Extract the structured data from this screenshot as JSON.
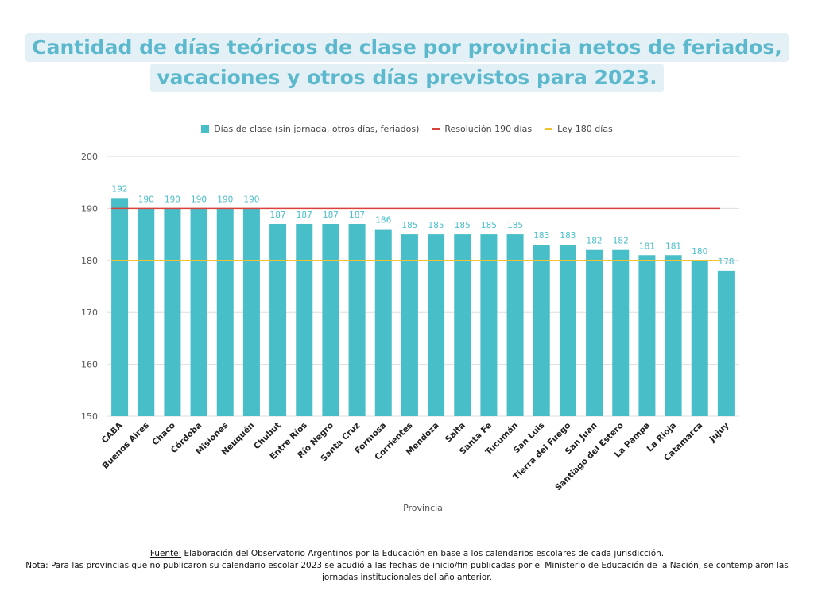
{
  "title_lines": [
    "Cantidad de días teóricos de clase por provincia netos de feriados,",
    "vacaciones y otros días previstos para 2023."
  ],
  "colors": {
    "bar": "#48bec8",
    "label": "#48bec8",
    "line_190": "#d9413a",
    "line_180": "#f2c230",
    "grid": "#dddddd",
    "title_text": "#5cb8cc",
    "title_bg": "#e3f1f6"
  },
  "legend": [
    {
      "label": "Días de clase (sin jornada, otros días, feriados)",
      "kind": "box",
      "color": "#48bec8"
    },
    {
      "label": "Resolución 190 días",
      "kind": "line",
      "color": "#d9413a"
    },
    {
      "label": "Ley 180 días",
      "kind": "line",
      "color": "#f2c230"
    }
  ],
  "chart_data": {
    "type": "bar",
    "title": "Cantidad de días teóricos de clase por provincia netos de feriados, vacaciones y otros días previstos para 2023.",
    "xlabel": "Provincia",
    "ylabel": "",
    "ylim": [
      150,
      200
    ],
    "yticks": [
      150,
      160,
      170,
      180,
      190,
      200
    ],
    "grid": true,
    "legend_position": "top",
    "categories": [
      "CABA",
      "Buenos Aires",
      "Chaco",
      "Córdoba",
      "Misiones",
      "Neuquén",
      "Chubut",
      "Entre Ríos",
      "Río Negro",
      "Santa Cruz",
      "Formosa",
      "Corrientes",
      "Mendoza",
      "Salta",
      "Santa Fe",
      "Tucumán",
      "San Luis",
      "Tierra del Fuego",
      "San Juan",
      "Santiago del Estero",
      "La Pampa",
      "La Rioja",
      "Catamarca",
      "Jujuy"
    ],
    "series": [
      {
        "name": "Días de clase (sin jornada, otros días, feriados)",
        "values": [
          192,
          190,
          190,
          190,
          190,
          190,
          187,
          187,
          187,
          187,
          186,
          185,
          185,
          185,
          185,
          185,
          183,
          183,
          182,
          182,
          181,
          181,
          180,
          178
        ]
      }
    ],
    "reference_lines": [
      {
        "name": "Resolución 190 días",
        "value": 190
      },
      {
        "name": "Ley 180 días",
        "value": 180
      }
    ]
  },
  "footer": {
    "source_label": "Fuente:",
    "source_text": " Elaboración del Observatorio Argentinos por la Educación en base a los calendarios escolares de cada jurisdicción.",
    "note": "Nota: Para las provincias que no publicaron su calendario escolar 2023 se acudió a las fechas de inicio/fin publicadas por el Ministerio de Educación de la Nación, se contemplaron las jornadas institucionales del año anterior."
  }
}
